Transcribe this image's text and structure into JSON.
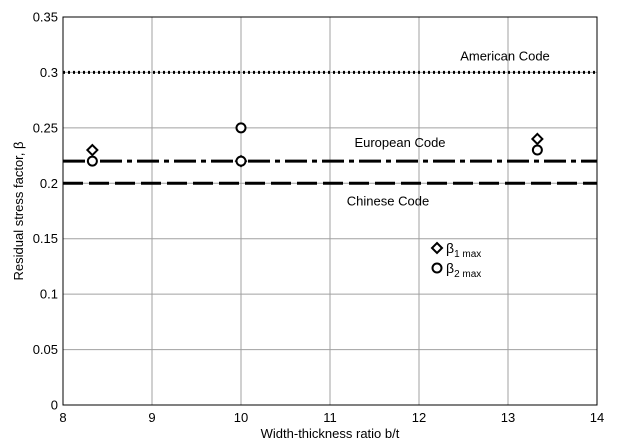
{
  "chart_data": {
    "type": "scatter",
    "xlabel": "Width-thickness ratio b/t",
    "ylabel": "Residual stress factor, β",
    "xlim": [
      8,
      14
    ],
    "ylim": [
      0,
      0.35
    ],
    "xticks": [
      8,
      9,
      10,
      11,
      12,
      13,
      14
    ],
    "yticks": [
      0,
      0.05,
      0.1,
      0.15,
      0.2,
      0.25,
      0.3,
      0.35
    ],
    "xtick_labels": [
      "8",
      "9",
      "10",
      "11",
      "12",
      "13",
      "14"
    ],
    "ytick_labels": [
      "0",
      "0.05",
      "0.1",
      "0.15",
      "0.2",
      "0.25",
      "0.3",
      "0.35"
    ],
    "grid": true,
    "series": [
      {
        "name": "β1max",
        "marker": "diamond",
        "x": [
          8.33,
          10,
          13.33
        ],
        "y": [
          0.23,
          0.22,
          0.24
        ]
      },
      {
        "name": "β2max",
        "marker": "circle",
        "x": [
          8.33,
          10,
          10,
          13.33
        ],
        "y": [
          0.22,
          0.25,
          0.22,
          0.23
        ]
      }
    ],
    "reference_lines": [
      {
        "label": "American Code",
        "y": 0.3,
        "style": "dotted"
      },
      {
        "label": "European Code",
        "y": 0.22,
        "style": "dash-dot"
      },
      {
        "label": "Chinese Code",
        "y": 0.2,
        "style": "dashed"
      }
    ],
    "legend": {
      "placement": "center-right",
      "entries": [
        {
          "symbol": "β",
          "sub": "1 max",
          "marker": "diamond"
        },
        {
          "symbol": "β",
          "sub": "2 max",
          "marker": "circle"
        }
      ]
    }
  }
}
